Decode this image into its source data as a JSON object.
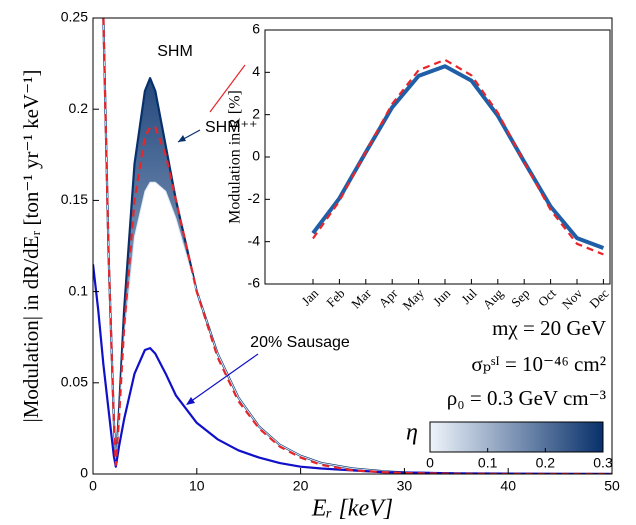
{
  "chart_data": [
    {
      "type": "line",
      "x_label": "Eᵣ [keV]",
      "y_label": "|Modulation| in dR/dEᵣ [ton⁻¹ yr⁻¹ keV⁻¹]",
      "x": [
        0,
        0.5,
        1,
        1.5,
        2,
        2.2,
        2.5,
        3,
        4,
        5,
        5.5,
        6,
        7,
        8,
        10,
        12,
        14,
        16,
        18,
        20,
        22,
        25,
        28,
        30,
        35,
        40,
        45,
        50
      ],
      "xlim": [
        0,
        50
      ],
      "xticks": [
        0,
        10,
        20,
        30,
        40,
        50
      ],
      "ylim": [
        0,
        0.25
      ],
      "yticks": [
        0,
        0.05,
        0.1,
        0.15,
        0.2,
        0.25
      ],
      "series": [
        {
          "name": "SHM",
          "color": "#e8262a",
          "dash": true,
          "values": [
            null,
            null,
            0.25,
            0.12,
            0.03,
            0.005,
            0.03,
            0.08,
            0.15,
            0.185,
            0.19,
            0.19,
            0.175,
            0.15,
            0.1,
            0.064,
            0.04,
            0.025,
            0.015,
            0.009,
            0.005,
            0.002,
            0.001,
            0.0005,
            0.0001,
            0,
            0,
            0
          ]
        },
        {
          "name": "SHM⁺⁺",
          "color": "#08306b",
          "values": [
            null,
            null,
            0.25,
            0.12,
            0.03,
            0.005,
            0.035,
            0.09,
            0.17,
            0.21,
            0.217,
            0.21,
            0.18,
            0.15,
            0.1,
            0.066,
            0.042,
            0.026,
            0.016,
            0.01,
            0.006,
            0.003,
            0.0015,
            0.0008,
            0.0002,
            0,
            0,
            0
          ]
        },
        {
          "color": "#dce9f6",
          "shade": true,
          "values": [
            null,
            null,
            0.25,
            0.12,
            0.03,
            0.005,
            0.03,
            0.075,
            0.13,
            0.155,
            0.16,
            0.16,
            0.155,
            0.14,
            0.1,
            0.066,
            0.042,
            0.026,
            0.016,
            0.01,
            0.006,
            0.003,
            0.0015,
            0.0008,
            0.0002,
            0,
            0,
            0
          ]
        },
        {
          "name": "20% Sausage",
          "color": "#1010c8",
          "values": [
            0.115,
            0.09,
            0.06,
            0.035,
            0.01,
            0.004,
            0.015,
            0.03,
            0.055,
            0.068,
            0.069,
            0.066,
            0.055,
            0.043,
            0.028,
            0.019,
            0.013,
            0.009,
            0.006,
            0.004,
            0.003,
            0.002,
            0.001,
            0.0008,
            0.0004,
            0.0002,
            0.0001,
            0
          ]
        }
      ],
      "annotations": [
        "mχ = 20 GeV",
        "σₚˢᴵ = 10⁻⁴⁶ cm²",
        "ρ₀ = 0.3 GeV cm⁻³"
      ],
      "colorbar": {
        "label": "η",
        "lim": [
          0,
          0.3
        ],
        "ticks": [
          0,
          0.1,
          0.2,
          0.3
        ],
        "colors": [
          "#eef4fb",
          "#08306b"
        ]
      }
    },
    {
      "type": "line",
      "y_label": "Modulation in R [%]",
      "categories": [
        "Jan",
        "Feb",
        "Mar",
        "Apr",
        "May",
        "Jun",
        "Jul",
        "Aug",
        "Sep",
        "Oct",
        "Nov",
        "Dec"
      ],
      "ylim": [
        -6,
        6
      ],
      "yticks": [
        -6,
        -4,
        -2,
        0,
        2,
        4,
        6
      ],
      "series": [
        {
          "color": "#1f5fa8",
          "values": [
            -3.6,
            -1.95,
            0.22,
            2.35,
            3.83,
            4.29,
            3.61,
            1.95,
            -0.22,
            -2.34,
            -3.83,
            -4.3
          ]
        },
        {
          "color": "#e8262a",
          "dash": true,
          "values": [
            -3.85,
            -2.08,
            0.24,
            2.51,
            4.1,
            4.59,
            3.86,
            2.09,
            -0.24,
            -2.5,
            -4.1,
            -4.6
          ]
        }
      ]
    }
  ]
}
